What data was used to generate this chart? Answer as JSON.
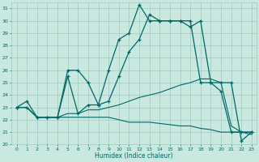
{
  "xlabel": "Humidex (Indice chaleur)",
  "xlim": [
    -0.5,
    23.5
  ],
  "ylim": [
    20,
    31.5
  ],
  "xticks": [
    0,
    1,
    2,
    3,
    4,
    5,
    6,
    7,
    8,
    9,
    10,
    11,
    12,
    13,
    14,
    15,
    16,
    17,
    18,
    19,
    20,
    21,
    22,
    23
  ],
  "yticks": [
    20,
    21,
    22,
    23,
    24,
    25,
    26,
    27,
    28,
    29,
    30,
    31
  ],
  "bg_color": "#c8e8e0",
  "grid_color": "#a0c8c0",
  "line_color": "#006868",
  "s1_x": [
    0,
    1,
    2,
    3,
    4,
    5,
    6,
    7,
    8,
    9,
    10,
    11,
    12,
    13,
    14,
    15,
    16,
    17,
    18,
    19,
    20,
    21,
    22,
    23
  ],
  "s1_y": [
    23.0,
    23.5,
    22.2,
    22.2,
    22.2,
    26.0,
    26.0,
    25.0,
    23.2,
    26.0,
    28.5,
    29.0,
    31.3,
    30.0,
    30.0,
    30.0,
    30.0,
    29.5,
    30.0,
    25.0,
    25.0,
    25.0,
    20.3,
    21.0
  ],
  "s2_x": [
    0,
    1,
    2,
    3,
    4,
    5,
    6,
    7,
    8,
    9,
    10,
    11,
    12,
    13,
    14,
    15,
    16,
    17,
    18,
    19,
    20,
    21,
    22,
    23
  ],
  "s2_y": [
    23.0,
    23.0,
    22.2,
    22.2,
    22.2,
    25.5,
    22.5,
    23.2,
    23.2,
    23.5,
    25.5,
    27.5,
    28.5,
    30.5,
    30.0,
    30.0,
    30.0,
    30.0,
    25.0,
    25.0,
    24.3,
    21.0,
    21.0,
    21.0
  ],
  "s3_x": [
    0,
    1,
    2,
    3,
    4,
    5,
    6,
    7,
    8,
    9,
    10,
    11,
    12,
    13,
    14,
    15,
    16,
    17,
    18,
    19,
    20,
    21,
    22,
    23
  ],
  "s3_y": [
    23.0,
    23.0,
    22.2,
    22.2,
    22.2,
    22.5,
    22.5,
    22.8,
    22.8,
    23.0,
    23.2,
    23.5,
    23.8,
    24.0,
    24.2,
    24.5,
    24.8,
    25.0,
    25.3,
    25.3,
    25.0,
    21.5,
    21.0,
    21.0
  ],
  "s4_x": [
    0,
    1,
    2,
    3,
    4,
    5,
    6,
    7,
    8,
    9,
    10,
    11,
    12,
    13,
    14,
    15,
    16,
    17,
    18,
    19,
    20,
    21,
    22,
    23
  ],
  "s4_y": [
    23.0,
    23.0,
    22.2,
    22.2,
    22.2,
    22.2,
    22.2,
    22.2,
    22.2,
    22.2,
    22.0,
    21.8,
    21.8,
    21.8,
    21.7,
    21.6,
    21.5,
    21.5,
    21.3,
    21.2,
    21.0,
    21.0,
    21.0,
    20.8
  ]
}
